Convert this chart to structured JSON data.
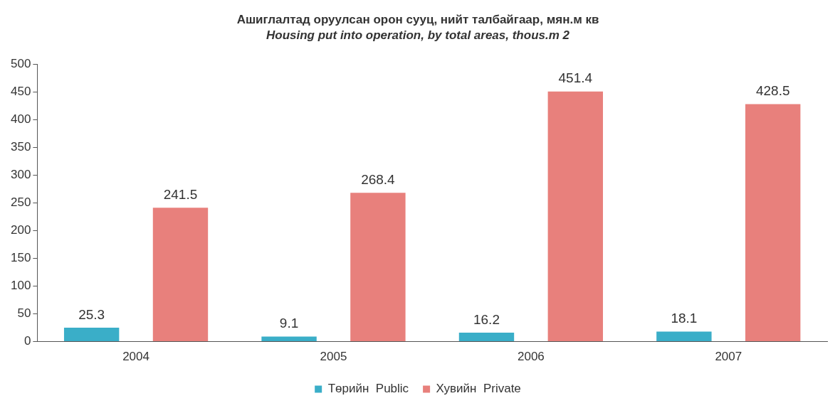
{
  "chart_data": {
    "type": "bar",
    "title": "Ашиглалтад оруулсан орон сууц, нийт талбайгаар, мян.м кв",
    "subtitle": "Housing put into operation, by total areas, thous.m 2",
    "categories": [
      "2004",
      "2005",
      "2006",
      "2007"
    ],
    "series": [
      {
        "name": "Төрийн  Public",
        "color": "#3aaec8",
        "values": [
          25.3,
          9.1,
          16.2,
          18.1
        ]
      },
      {
        "name": "Хувийн  Private",
        "color": "#e8807c",
        "values": [
          241.5,
          268.4,
          451.4,
          428.5
        ]
      }
    ],
    "ylim": [
      0,
      500
    ],
    "yticks": [
      0,
      50,
      100,
      150,
      200,
      250,
      300,
      350,
      400,
      450,
      500
    ],
    "grid": false,
    "legend": "bottom",
    "data_labels": true
  }
}
